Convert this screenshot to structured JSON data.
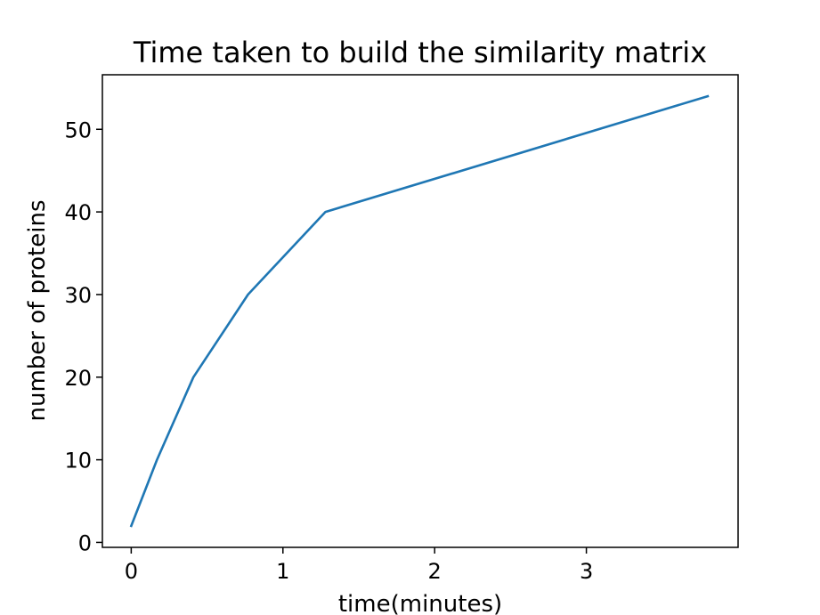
{
  "chart_data": {
    "type": "line",
    "title": "Time taken to build the similarity matrix",
    "xlabel": "time(minutes)",
    "ylabel": "number of proteins",
    "xlim": [
      -0.19,
      4.0
    ],
    "ylim": [
      -0.6,
      56.6
    ],
    "xticks": [
      0,
      1,
      2,
      3
    ],
    "yticks": [
      0,
      10,
      20,
      30,
      40,
      50
    ],
    "grid": false,
    "series": [
      {
        "color": "#1f77b4",
        "x": [
          0,
          0.17,
          0.41,
          0.77,
          1.28,
          3.8
        ],
        "y": [
          2,
          10,
          20,
          30,
          40,
          54
        ]
      }
    ]
  }
}
